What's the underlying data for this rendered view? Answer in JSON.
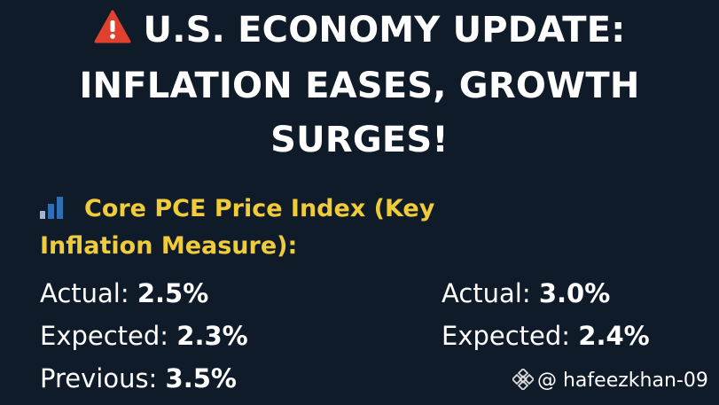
{
  "headline": {
    "line1": "U.S. ECONOMY UPDATE:",
    "line2": "INFLATION EASES, GROWTH",
    "line3": "SURGES!",
    "icon": "warning-icon"
  },
  "section": {
    "icon": "bar-chart-icon",
    "line1": "Core PCE Price Index (Key",
    "line2": "Inflation Measure):"
  },
  "left_stats": [
    {
      "label": "Actual: ",
      "value": "2.5%"
    },
    {
      "label": "Expected: ",
      "value": "2.3%"
    },
    {
      "label": "Previous: ",
      "value": "3.5%"
    }
  ],
  "right_stats": [
    {
      "label": "Actual: ",
      "value": "3.0%"
    },
    {
      "label": "Expected: ",
      "value": "2.4%"
    }
  ],
  "watermark": {
    "icon": "binance-logo-icon",
    "text": "@ hafeezkhan-09"
  },
  "colors": {
    "background": "#101b2a",
    "accent_yellow": "#f0cc3a",
    "warning_red": "#e0412f",
    "chart_blue": "#2f6fb5"
  }
}
